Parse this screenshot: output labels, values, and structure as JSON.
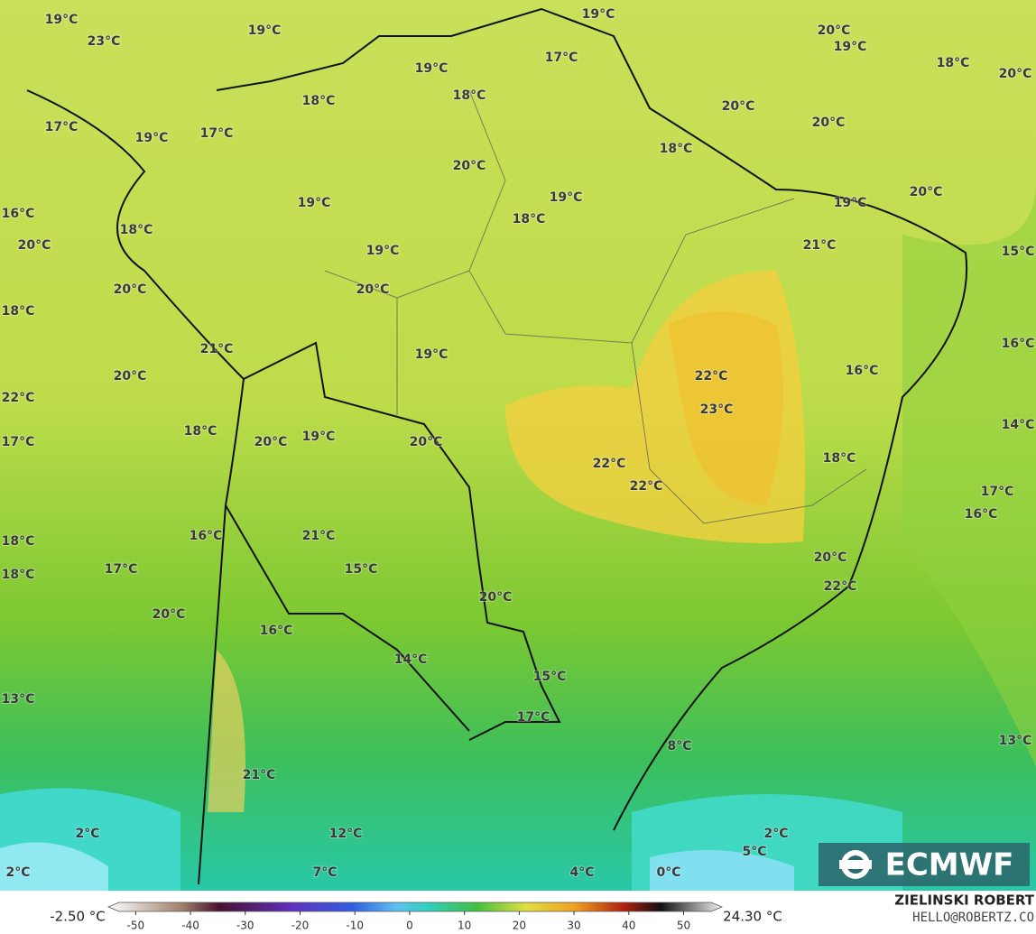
{
  "map": {
    "labels": [
      "19°C",
      "23°C",
      "19°C",
      "19°C",
      "17°C",
      "19°C",
      "20°C",
      "19°C",
      "18°C",
      "20°C",
      "18°C",
      "18°C",
      "20°C",
      "20°C",
      "17°C",
      "19°C",
      "17°C",
      "18°C",
      "20°C",
      "20°C",
      "19°C",
      "19°C",
      "19°C",
      "16°C",
      "18°C",
      "18°C",
      "20°C",
      "21°C",
      "19°C",
      "15°C",
      "20°C",
      "20°C",
      "18°C",
      "16°C",
      "21°C",
      "19°C",
      "20°C",
      "22°C",
      "16°C",
      "22°C",
      "23°C",
      "14°C",
      "18°C",
      "20°C",
      "19°C",
      "20°C",
      "17°C",
      "22°C",
      "18°C",
      "22°C",
      "17°C",
      "16°C",
      "16°C",
      "21°C",
      "18°C",
      "15°C",
      "17°C",
      "18°C",
      "20°C",
      "22°C",
      "20°C",
      "20°C",
      "16°C",
      "14°C",
      "15°C",
      "13°C",
      "17°C",
      "8°C",
      "13°C",
      "21°C",
      "2°C",
      "12°C",
      "2°C",
      "5°C",
      "7°C",
      "4°C",
      "0°C",
      "2°C"
    ]
  },
  "legend": {
    "min_label": "-2.50 °C",
    "max_label": "24.30 °C",
    "lim": [
      -55,
      57
    ],
    "ticks": [
      -50,
      -40,
      -30,
      -20,
      -10,
      0,
      10,
      20,
      30,
      40,
      50
    ]
  },
  "logo": "ECMWF",
  "credit": {
    "name": "ZIELINSKI ROBERT",
    "email": "HELLO@ROBERTZ.CO"
  }
}
